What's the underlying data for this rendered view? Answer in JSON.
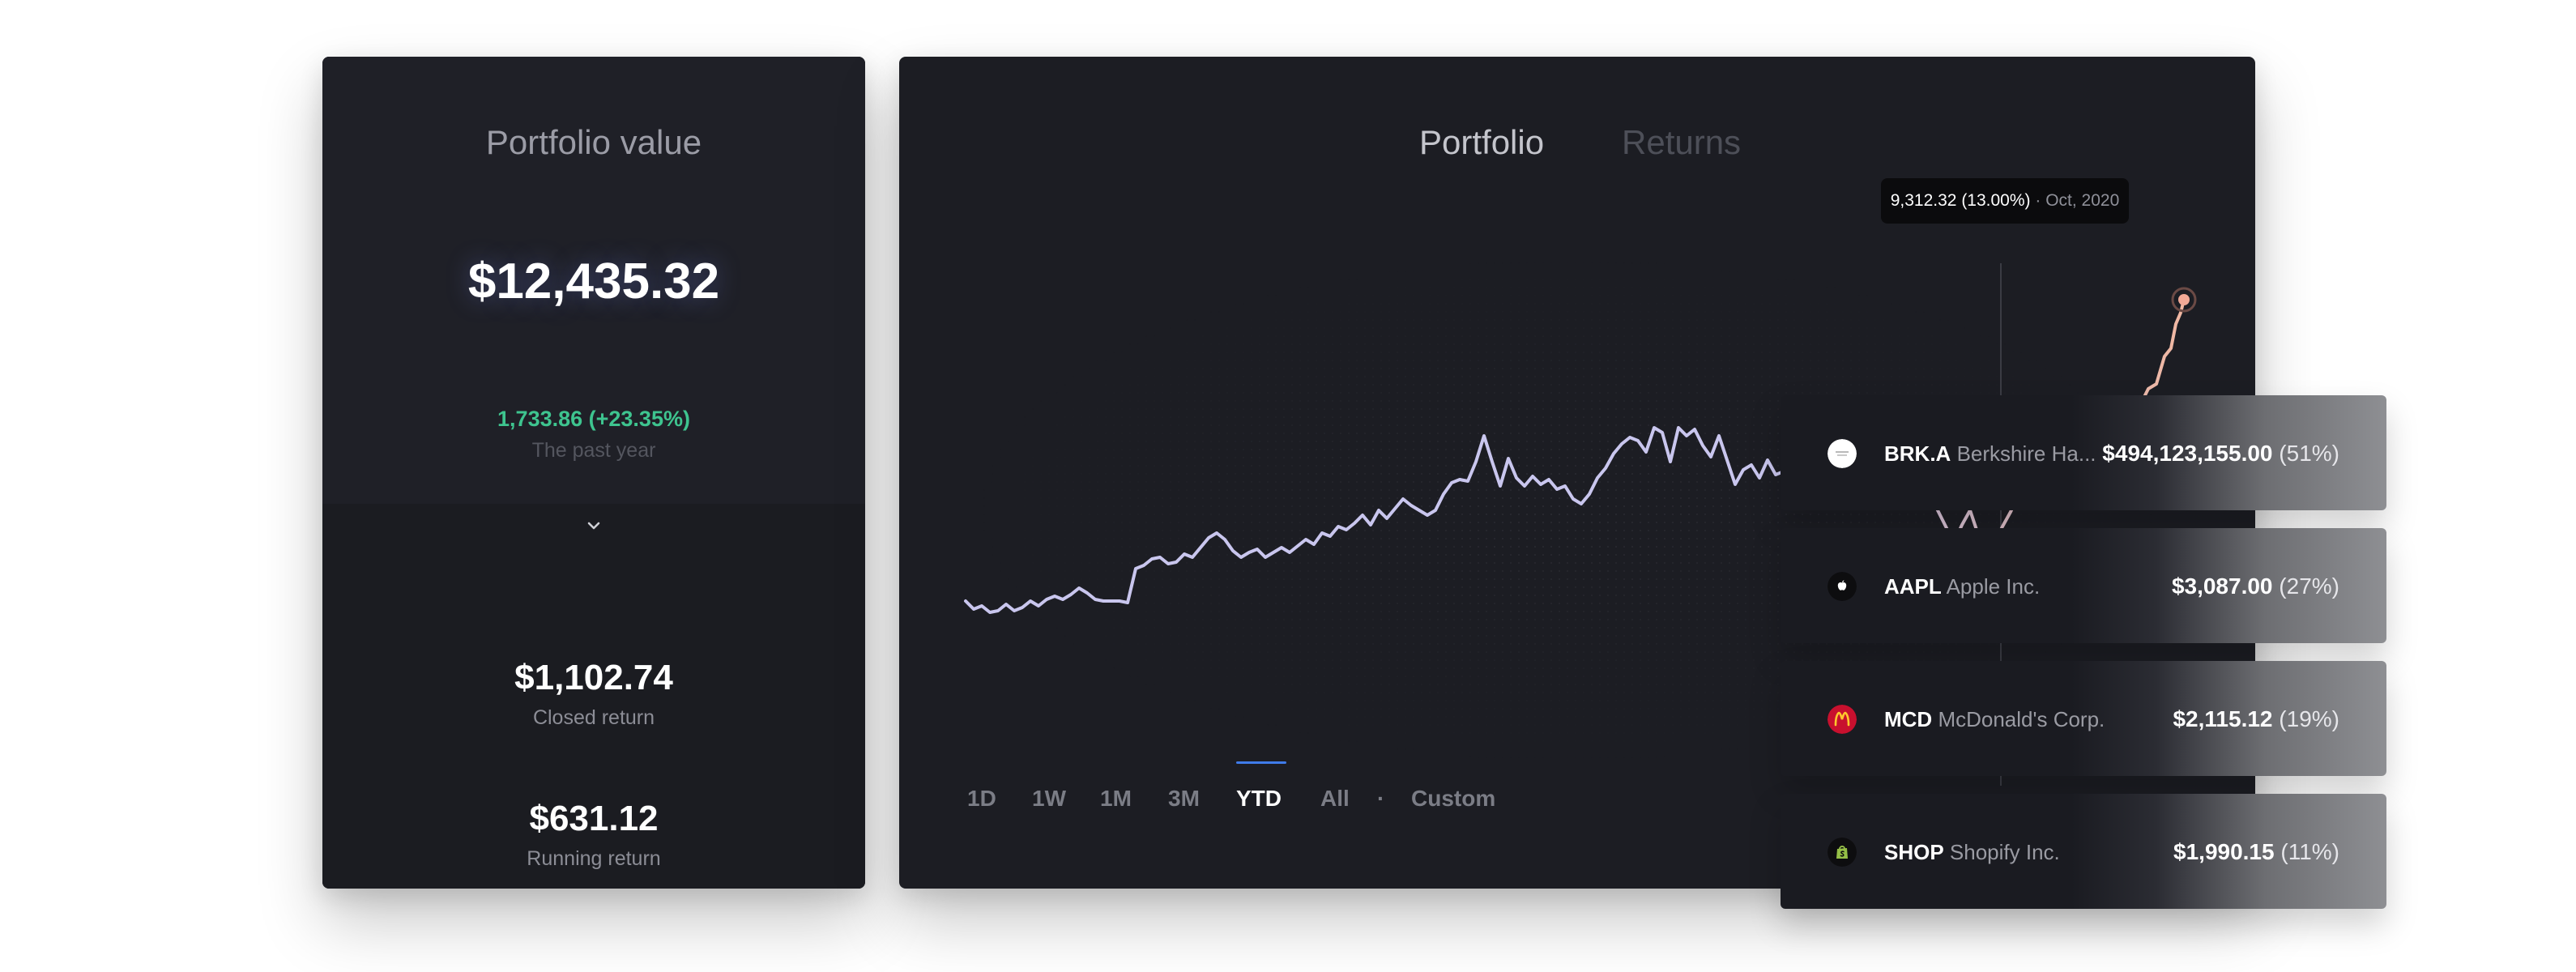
{
  "summary": {
    "title": "Portfolio value",
    "value": "$12,435.32",
    "change": "1,733.86 (+23.35%)",
    "period": "The past year",
    "closed_value": "$1,102.74",
    "closed_label": "Closed return",
    "running_value": "$631.12",
    "running_label": "Running return"
  },
  "chart": {
    "tabs": [
      {
        "label": "Portfolio",
        "active": true
      },
      {
        "label": "Returns",
        "active": false
      }
    ],
    "tooltip": {
      "value": "9,312.32 (13.00%)",
      "separator": " · ",
      "date": "Oct, 2020"
    },
    "ranges": [
      "1D",
      "1W",
      "1M",
      "3M",
      "YTD",
      "All"
    ],
    "active_range": "YTD",
    "range_separator": "·",
    "custom_label": "Custom",
    "line_color_start": "#c9c6ee",
    "line_color_end": "#f0b7a2",
    "accent": "#3f7bea"
  },
  "holdings": [
    {
      "ticker": "BRK.A",
      "name": "Berkshire Ha...",
      "amount": "$494,123,155.00",
      "pct": "(51%)",
      "logo": "berkshire-logo-icon",
      "logo_bg": "#ffffff"
    },
    {
      "ticker": "AAPL",
      "name": "Apple Inc.",
      "amount": "$3,087.00",
      "pct": "(27%)",
      "logo": "apple-logo-icon",
      "logo_bg": "#0d0d0f"
    },
    {
      "ticker": "MCD",
      "name": "McDonald's Corp.",
      "amount": "$2,115.12",
      "pct": "(19%)",
      "logo": "mcdonalds-logo-icon",
      "logo_bg": "#c8102e"
    },
    {
      "ticker": "SHOP",
      "name": "Shopify Inc.",
      "amount": "$1,990.15",
      "pct": "(11%)",
      "logo": "shopify-logo-icon",
      "logo_bg": "#0d0d0f"
    }
  ]
}
